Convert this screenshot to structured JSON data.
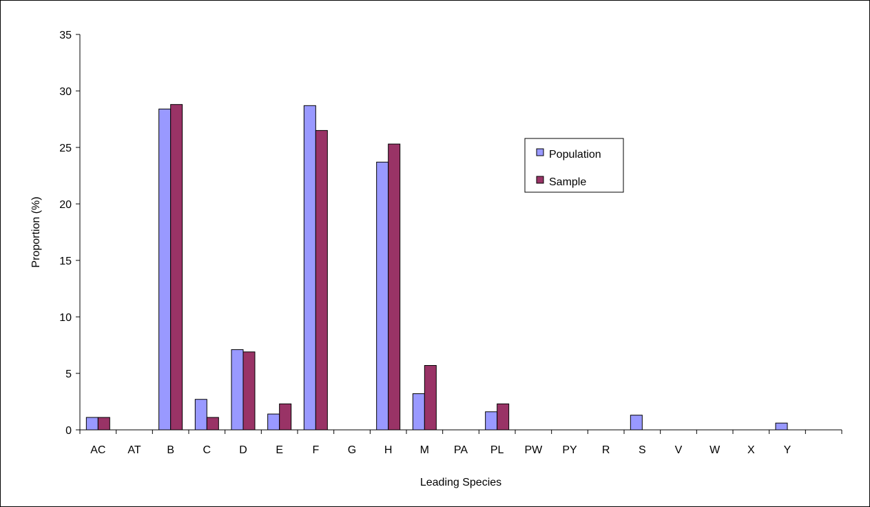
{
  "chart_data": {
    "type": "bar",
    "xlabel": "Leading Species",
    "ylabel": "Proportion (%)",
    "ylim": [
      0,
      35
    ],
    "yticks": [
      0,
      5,
      10,
      15,
      20,
      25,
      30,
      35
    ],
    "grid": false,
    "legend_position": "right",
    "categories": [
      "AC",
      "AT",
      "B",
      "C",
      "D",
      "E",
      "F",
      "G",
      "H",
      "M",
      "PA",
      "PL",
      "PW",
      "PY",
      "R",
      "S",
      "V",
      "W",
      "X",
      "Y"
    ],
    "series": [
      {
        "name": "Population",
        "color": "#9999ff",
        "values": [
          1.1,
          0,
          28.4,
          2.7,
          7.1,
          1.4,
          28.7,
          0,
          23.7,
          3.2,
          0,
          1.6,
          0,
          0,
          0,
          1.3,
          0,
          0,
          0,
          0.6
        ]
      },
      {
        "name": "Sample",
        "color": "#993366",
        "values": [
          1.1,
          0,
          28.8,
          1.1,
          6.9,
          2.3,
          26.5,
          0,
          25.3,
          5.7,
          0,
          2.3,
          0,
          0,
          0,
          0,
          0,
          0,
          0,
          0
        ]
      }
    ]
  }
}
